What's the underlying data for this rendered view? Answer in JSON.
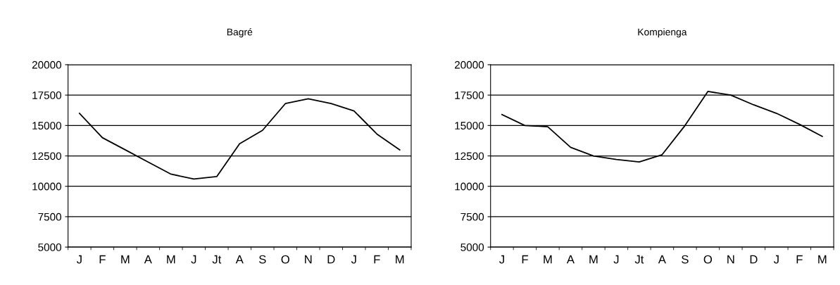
{
  "chart_data": [
    {
      "type": "line",
      "title": "Bagré",
      "categories": [
        "J",
        "F",
        "M",
        "A",
        "M",
        "J",
        "Jt",
        "A",
        "S",
        "O",
        "N",
        "D",
        "J",
        "F",
        "M"
      ],
      "series": [
        {
          "color": "#000000",
          "values": [
            16000,
            14000,
            13000,
            12000,
            11000,
            10600,
            10800,
            13500,
            14600,
            16800,
            17200,
            16800,
            16200,
            14300,
            13000
          ]
        }
      ],
      "ylim": [
        5000,
        20000
      ],
      "yticks": [
        5000,
        7500,
        10000,
        12500,
        15000,
        17500,
        20000
      ],
      "grid": "y",
      "marker": "none",
      "line_style": "solid"
    },
    {
      "type": "line",
      "title": "Kompienga",
      "categories": [
        "J",
        "F",
        "M",
        "A",
        "M",
        "J",
        "Jt",
        "A",
        "S",
        "O",
        "N",
        "D",
        "J",
        "F",
        "M"
      ],
      "series": [
        {
          "color": "#000000",
          "values": [
            15900,
            15000,
            14900,
            13200,
            12500,
            12200,
            12000,
            12600,
            15000,
            17800,
            17500,
            16700,
            16000,
            15100,
            14100
          ]
        }
      ],
      "ylim": [
        5000,
        20000
      ],
      "yticks": [
        5000,
        7500,
        10000,
        12500,
        15000,
        17500,
        20000
      ],
      "grid": "y",
      "marker": "none",
      "line_style": "solid"
    }
  ]
}
